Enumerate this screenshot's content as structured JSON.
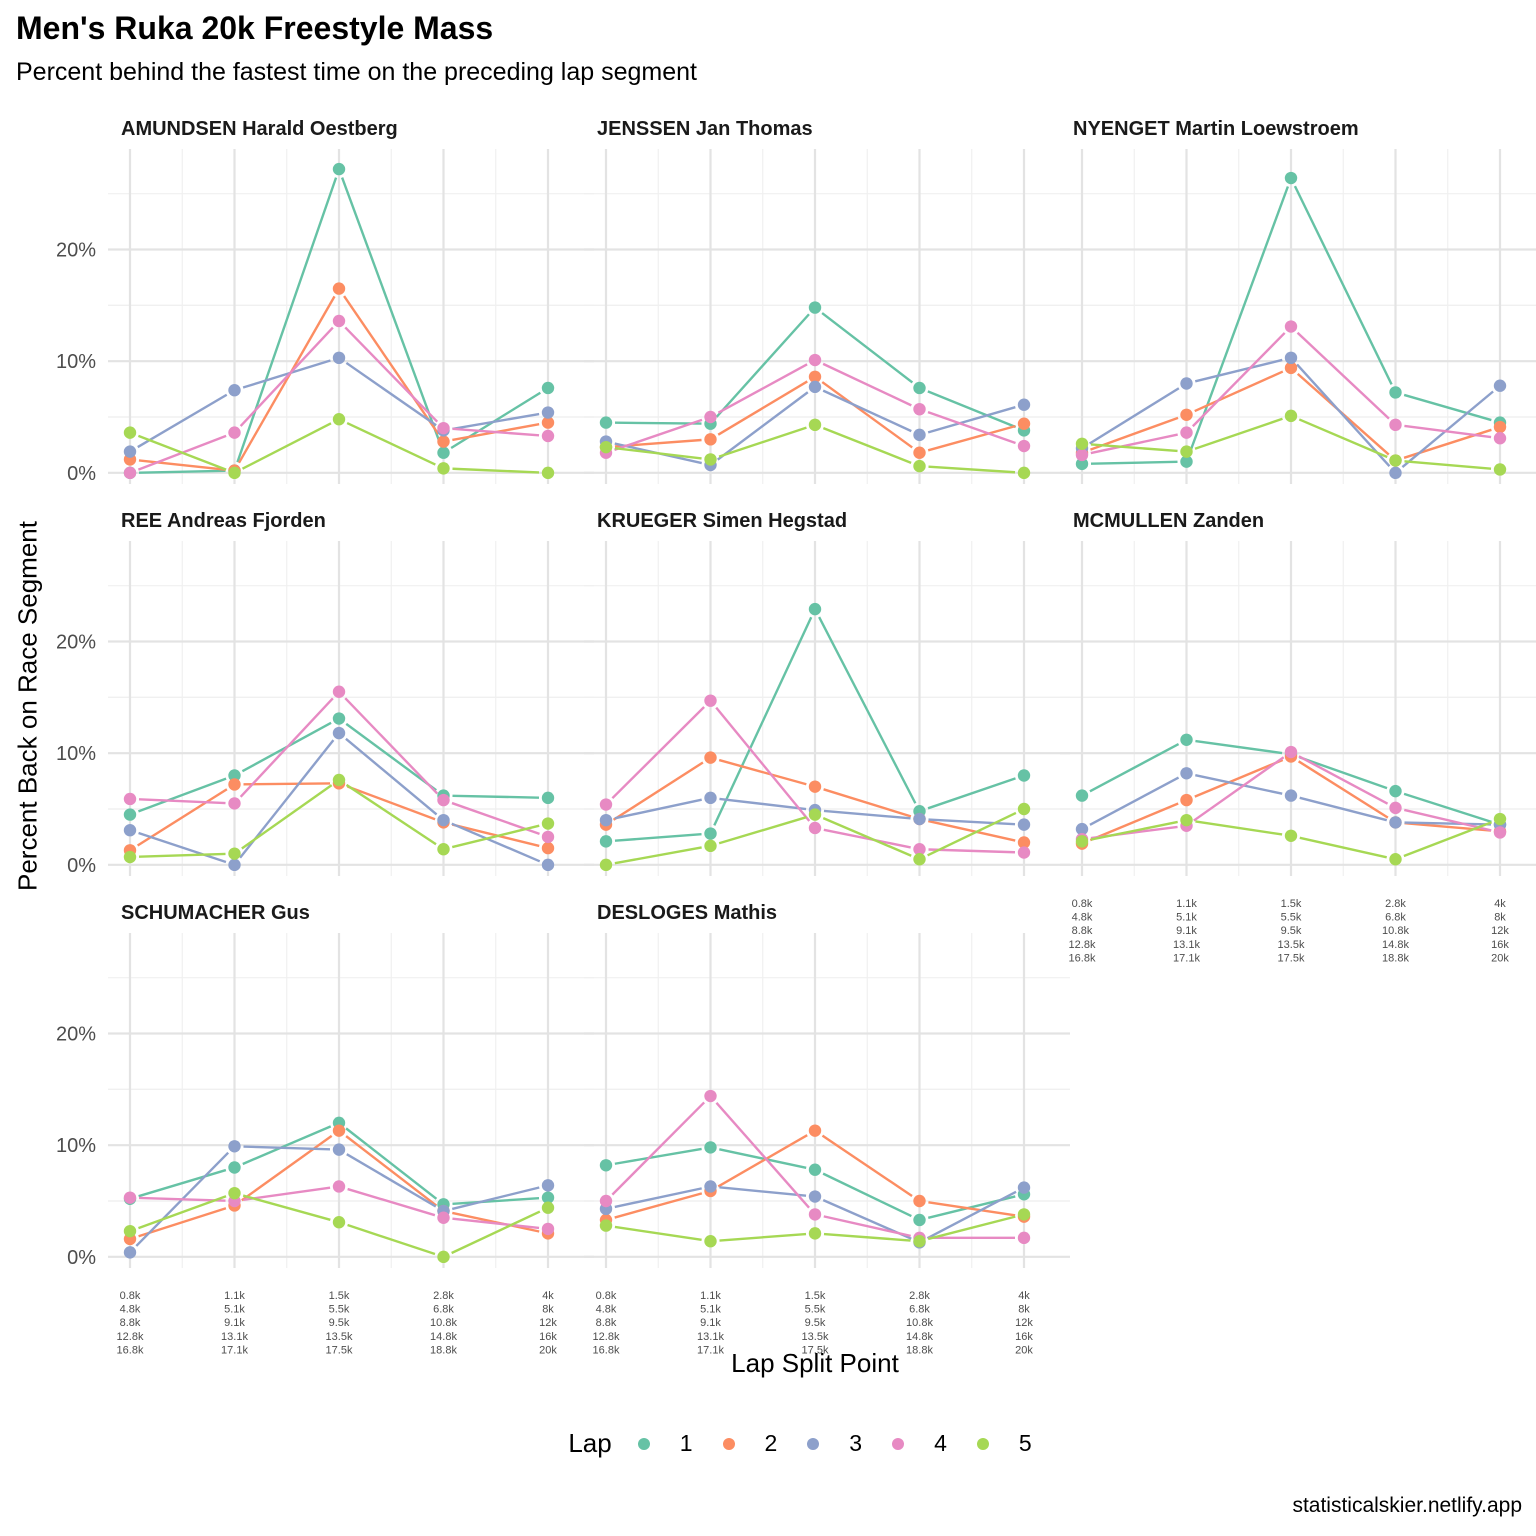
{
  "title": "Men's Ruka 20k Freestyle Mass",
  "subtitle": "Percent behind the fastest time on the preceding lap segment",
  "caption": "statisticalskier.netlify.app",
  "colors": {
    "1": "#66C2A5",
    "2": "#FC8D62",
    "3": "#8DA0CB",
    "4": "#E78AC3",
    "5": "#A6D854"
  },
  "chart_data": {
    "type": "line",
    "xlabel": "Lap Split Point",
    "ylabel": "Percent Back on Race Segment",
    "legend_title": "Lap",
    "legend_position": "bottom",
    "grid": true,
    "ylim": [
      -1,
      29
    ],
    "y_ticks": [
      0,
      10,
      20
    ],
    "y_tick_labels": [
      "0%",
      "10%",
      "20%"
    ],
    "x_ticks": [
      1,
      2,
      3,
      4,
      5
    ],
    "x_tick_labels": [
      [
        "0.8k",
        "4.8k",
        "8.8k",
        "12.8k",
        "16.8k"
      ],
      [
        "1.1k",
        "5.1k",
        "9.1k",
        "13.1k",
        "17.1k"
      ],
      [
        "1.5k",
        "5.5k",
        "9.5k",
        "13.5k",
        "17.5k"
      ],
      [
        "2.8k",
        "6.8k",
        "10.8k",
        "14.8k",
        "18.8k"
      ],
      [
        "4k",
        "8k",
        "12k",
        "16k",
        "20k"
      ]
    ],
    "laps": [
      "1",
      "2",
      "3",
      "4",
      "5"
    ],
    "panels": [
      {
        "athlete": "AMUNDSEN Harald Oestberg",
        "series": [
          {
            "name": "1",
            "values": [
              0,
              0.2,
              27.2,
              1.8,
              7.6
            ]
          },
          {
            "name": "2",
            "values": [
              1.2,
              0.2,
              16.5,
              2.8,
              4.5
            ]
          },
          {
            "name": "3",
            "values": [
              1.9,
              7.4,
              10.3,
              3.8,
              5.4
            ]
          },
          {
            "name": "4",
            "values": [
              0,
              3.6,
              13.6,
              4.0,
              3.3
            ]
          },
          {
            "name": "5",
            "values": [
              3.6,
              0,
              4.8,
              0.4,
              0
            ]
          }
        ]
      },
      {
        "athlete": "JENSSEN Jan Thomas",
        "series": [
          {
            "name": "1",
            "values": [
              4.5,
              4.4,
              14.8,
              7.6,
              3.8
            ]
          },
          {
            "name": "2",
            "values": [
              2.3,
              3.0,
              8.6,
              1.8,
              4.4
            ]
          },
          {
            "name": "3",
            "values": [
              2.8,
              0.7,
              7.7,
              3.4,
              6.1
            ]
          },
          {
            "name": "4",
            "values": [
              1.8,
              5.0,
              10.1,
              5.7,
              2.4
            ]
          },
          {
            "name": "5",
            "values": [
              2.3,
              1.2,
              4.3,
              0.6,
              0
            ]
          }
        ]
      },
      {
        "athlete": "NYENGET Martin Loewstroem",
        "series": [
          {
            "name": "1",
            "values": [
              0.8,
              1.0,
              26.4,
              7.2,
              4.5
            ]
          },
          {
            "name": "2",
            "values": [
              1.8,
              5.2,
              9.4,
              1.1,
              4.1
            ]
          },
          {
            "name": "3",
            "values": [
              2.2,
              8.0,
              10.3,
              0,
              7.8
            ]
          },
          {
            "name": "4",
            "values": [
              1.6,
              3.6,
              13.1,
              4.3,
              3.1
            ]
          },
          {
            "name": "5",
            "values": [
              2.6,
              1.9,
              5.1,
              1.1,
              0.3
            ]
          }
        ]
      },
      {
        "athlete": "REE Andreas Fjorden",
        "series": [
          {
            "name": "1",
            "values": [
              4.5,
              8.0,
              13.1,
              6.2,
              6.0
            ]
          },
          {
            "name": "2",
            "values": [
              1.3,
              7.2,
              7.3,
              3.8,
              1.5
            ]
          },
          {
            "name": "3",
            "values": [
              3.1,
              0,
              11.8,
              4.0,
              0
            ]
          },
          {
            "name": "4",
            "values": [
              5.9,
              5.5,
              15.5,
              5.8,
              2.5
            ]
          },
          {
            "name": "5",
            "values": [
              0.7,
              1.0,
              7.6,
              1.4,
              3.7
            ]
          }
        ]
      },
      {
        "athlete": "KRUEGER Simen Hegstad",
        "series": [
          {
            "name": "1",
            "values": [
              2.1,
              2.8,
              22.9,
              4.8,
              8.0
            ]
          },
          {
            "name": "2",
            "values": [
              3.6,
              9.6,
              7.0,
              4.1,
              2.0
            ]
          },
          {
            "name": "3",
            "values": [
              4.0,
              6.0,
              4.9,
              4.1,
              3.6
            ]
          },
          {
            "name": "4",
            "values": [
              5.4,
              14.7,
              3.3,
              1.4,
              1.1
            ]
          },
          {
            "name": "5",
            "values": [
              0,
              1.7,
              4.5,
              0.5,
              5.0
            ]
          }
        ]
      },
      {
        "athlete": "MCMULLEN Zanden",
        "series": [
          {
            "name": "1",
            "values": [
              6.2,
              11.2,
              9.9,
              6.6,
              3.6
            ]
          },
          {
            "name": "2",
            "values": [
              1.9,
              5.8,
              9.7,
              3.8,
              3.0
            ]
          },
          {
            "name": "3",
            "values": [
              3.2,
              8.2,
              6.2,
              3.8,
              3.6
            ]
          },
          {
            "name": "4",
            "values": [
              2.3,
              3.5,
              10.1,
              5.1,
              2.9
            ]
          },
          {
            "name": "5",
            "values": [
              2.1,
              4.0,
              2.6,
              0.5,
              4.1
            ]
          }
        ]
      },
      {
        "athlete": "SCHUMACHER Gus",
        "series": [
          {
            "name": "1",
            "values": [
              5.2,
              8.0,
              12.0,
              4.7,
              5.3
            ]
          },
          {
            "name": "2",
            "values": [
              1.6,
              4.6,
              11.3,
              4.1,
              2.1
            ]
          },
          {
            "name": "3",
            "values": [
              0.4,
              9.9,
              9.6,
              4.1,
              6.4
            ]
          },
          {
            "name": "4",
            "values": [
              5.3,
              5.0,
              6.3,
              3.5,
              2.5
            ]
          },
          {
            "name": "5",
            "values": [
              2.3,
              5.7,
              3.1,
              0,
              4.4
            ]
          }
        ]
      },
      {
        "athlete": "DESLOGES Mathis",
        "series": [
          {
            "name": "1",
            "values": [
              8.2,
              9.8,
              7.8,
              3.3,
              5.6
            ]
          },
          {
            "name": "2",
            "values": [
              3.3,
              5.9,
              11.3,
              5.0,
              3.6
            ]
          },
          {
            "name": "3",
            "values": [
              4.3,
              6.3,
              5.4,
              1.3,
              6.2
            ]
          },
          {
            "name": "4",
            "values": [
              5.0,
              14.4,
              3.8,
              1.7,
              1.7
            ]
          },
          {
            "name": "5",
            "values": [
              2.8,
              1.4,
              2.1,
              1.4,
              3.8
            ]
          }
        ]
      }
    ]
  }
}
